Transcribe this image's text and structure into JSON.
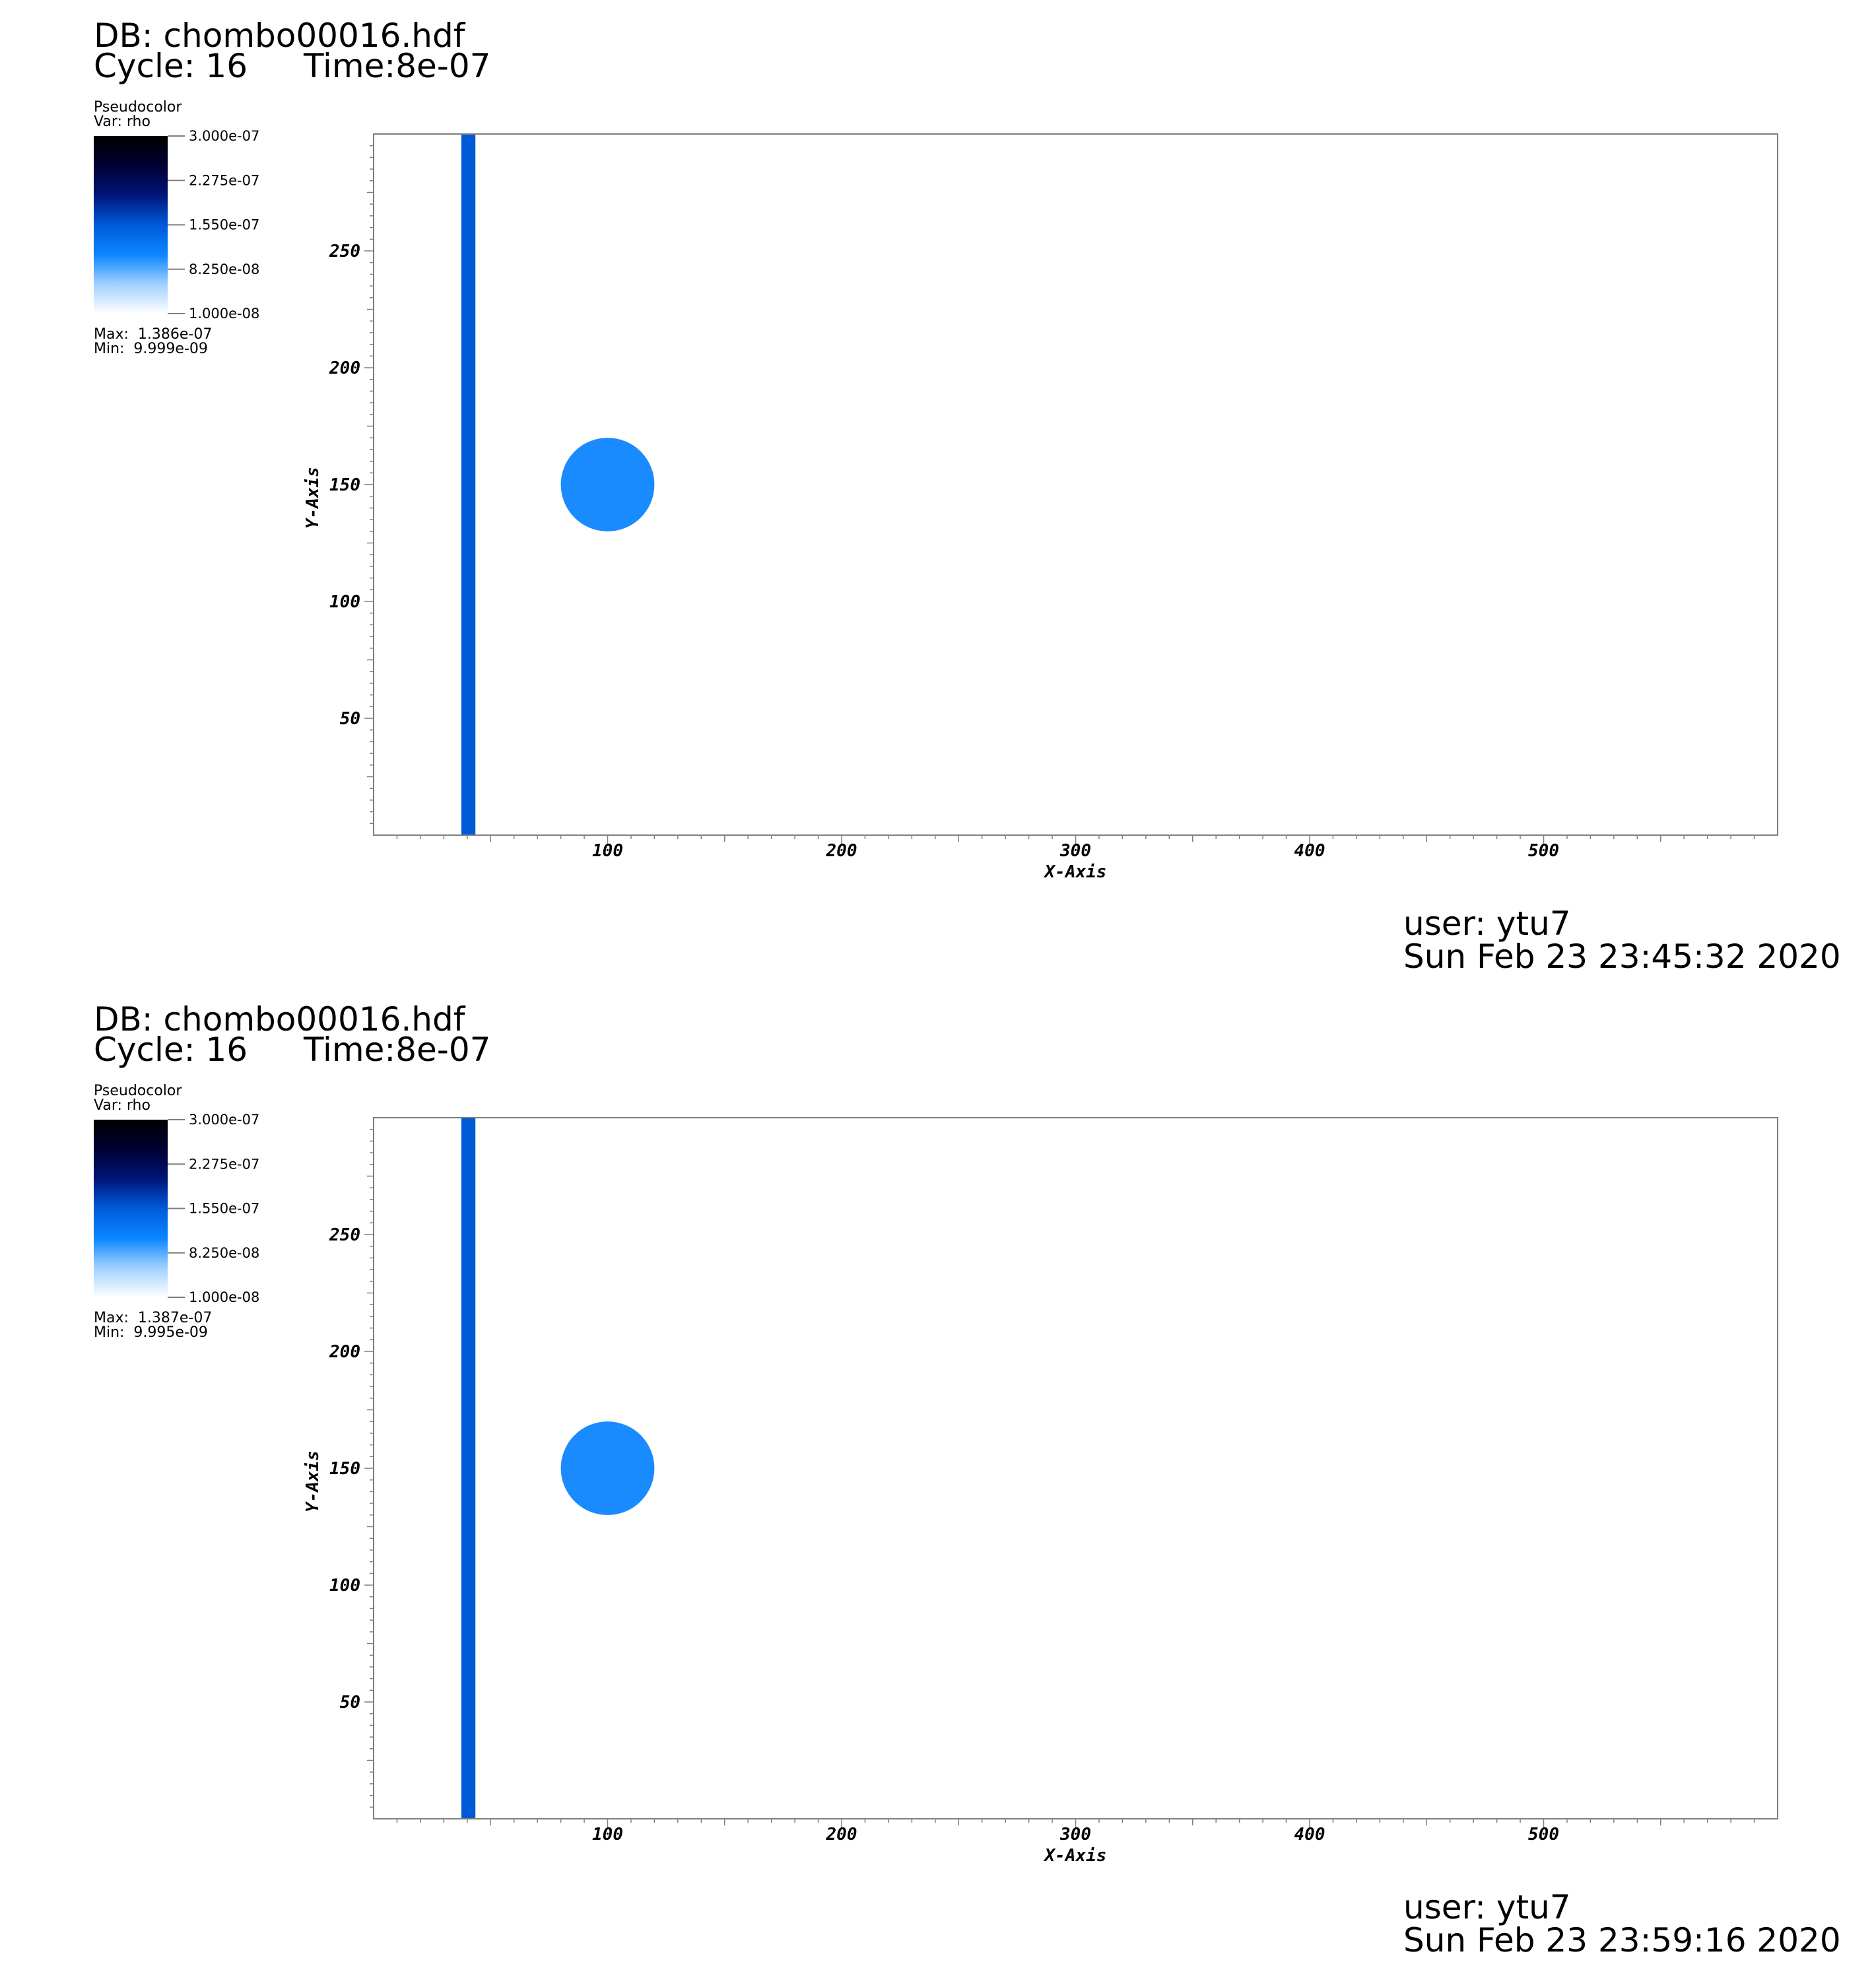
{
  "colors": {
    "band": "#0059d6",
    "circle": "#1a8aff",
    "frame": "#7f7f7f",
    "colorbar": [
      "#000000",
      "#000033",
      "#00157a",
      "#005ad9",
      "#0a86ff",
      "#9fd0ff",
      "#ffffff"
    ]
  },
  "chart_data": [
    {
      "type": "heatmap",
      "db_label": "DB: chombo00016.hdf",
      "cycle_label": "Cycle: 16",
      "time_label": "Time:8e-07",
      "plot_name": "Pseudocolor",
      "var_label": "Var: rho",
      "colorbar_ticks": [
        "3.000e-07",
        "2.275e-07",
        "1.550e-07",
        "8.250e-08",
        "1.000e-08"
      ],
      "colorbar_range": [
        1e-08,
        3e-07
      ],
      "max_label": "Max:  1.386e-07",
      "min_label": "Min:  9.999e-09",
      "xlabel": "X-Axis",
      "ylabel": "Y-Axis",
      "xlim": [
        0,
        600
      ],
      "ylim": [
        0,
        300
      ],
      "x_ticks": [
        100,
        200,
        300,
        400,
        500
      ],
      "y_ticks": [
        50,
        100,
        150,
        200,
        250
      ],
      "features": [
        {
          "kind": "band",
          "x_range": [
            37.5,
            43.5
          ],
          "value": 1.2e-07
        },
        {
          "kind": "circle",
          "center": [
            100,
            150
          ],
          "radius": 20,
          "value": 8.2e-08
        }
      ],
      "user_label": "user: ytu7",
      "date_label": "Sun Feb 23 23:45:32 2020"
    },
    {
      "type": "heatmap",
      "db_label": "DB: chombo00016.hdf",
      "cycle_label": "Cycle: 16",
      "time_label": "Time:8e-07",
      "plot_name": "Pseudocolor",
      "var_label": "Var: rho",
      "colorbar_ticks": [
        "3.000e-07",
        "2.275e-07",
        "1.550e-07",
        "8.250e-08",
        "1.000e-08"
      ],
      "colorbar_range": [
        1e-08,
        3e-07
      ],
      "max_label": "Max:  1.387e-07",
      "min_label": "Min:  9.995e-09",
      "xlabel": "X-Axis",
      "ylabel": "Y-Axis",
      "xlim": [
        0,
        600
      ],
      "ylim": [
        0,
        300
      ],
      "x_ticks": [
        100,
        200,
        300,
        400,
        500
      ],
      "y_ticks": [
        50,
        100,
        150,
        200,
        250
      ],
      "features": [
        {
          "kind": "band",
          "x_range": [
            37.5,
            43.5
          ],
          "value": 1.2e-07
        },
        {
          "kind": "circle",
          "center": [
            100,
            150
          ],
          "radius": 20,
          "value": 8.2e-08
        }
      ],
      "user_label": "user: ytu7",
      "date_label": "Sun Feb 23 23:59:16 2020"
    }
  ]
}
